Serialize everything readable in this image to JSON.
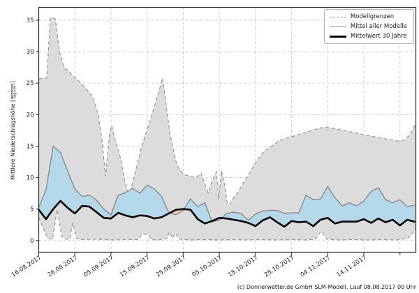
{
  "footer": {
    "copyright": "(c) Donnerwetter.de GmbH SLM-Modell, Lauf 08.08.2017 00 Uhr"
  },
  "chart_data": {
    "type": "area",
    "title": "",
    "xlabel": "",
    "ylabel": {
      "prefix": "Mittlere Niederschlagshöhe [",
      "frac_num": "l",
      "frac_den": "Tag×m²",
      "suffix": "]"
    },
    "grid": true,
    "legend_position": "upper right",
    "legend": [
      {
        "label": "Modellgrenzen",
        "style": "dashed-gray"
      },
      {
        "label": "Mittel aller Modelle",
        "style": "solid-gray"
      },
      {
        "label": "Mittelwert 30 Jahre",
        "style": "solid-black"
      }
    ],
    "ylim": [
      -1.85,
      37.05
    ],
    "xlim_days": [
      0,
      104.4
    ],
    "y_ticks": [
      0,
      5,
      10,
      15,
      20,
      25,
      30,
      35
    ],
    "x_ticks": [
      {
        "day": 0,
        "label": "16.08.2017"
      },
      {
        "day": 10,
        "label": "26.08.2017"
      },
      {
        "day": 20,
        "label": "05.09.2017"
      },
      {
        "day": 30,
        "label": "15.09.2017"
      },
      {
        "day": 40,
        "label": "25.09.2017"
      },
      {
        "day": 50,
        "label": "05.10.2017"
      },
      {
        "day": 60,
        "label": "15.10.2017"
      },
      {
        "day": 70,
        "label": "25.10.2017"
      },
      {
        "day": 80,
        "label": "04.11.2017"
      },
      {
        "day": 90,
        "label": "14.11.2017"
      },
      {
        "day": 100,
        "label": ""
      }
    ],
    "x_grid_days": [
      10,
      20,
      30,
      40,
      50,
      60,
      70,
      80,
      90,
      100
    ],
    "colors": {
      "band_fill": "#dcdcdc",
      "band_edge": "#8f8f8f",
      "fill_above": "#b5d8ea",
      "fill_below": "#f1c5bc",
      "mean_line": "#8a8a8a",
      "mean30_line": "#000000",
      "grid": "#c9c9c9",
      "spine": "#262626",
      "text": "#1a1a1a"
    },
    "series": {
      "upper_bound": {
        "name": "Modellgrenzen (oben)",
        "points": [
          [
            0,
            25.7
          ],
          [
            2.2,
            25.8
          ],
          [
            3.2,
            35.4
          ],
          [
            4.6,
            35.2
          ],
          [
            5.7,
            30.0
          ],
          [
            7.2,
            27.3
          ],
          [
            8.3,
            27.0
          ],
          [
            9,
            26.4
          ],
          [
            11,
            25.4
          ],
          [
            13,
            24.2
          ],
          [
            15,
            22.8
          ],
          [
            16.5,
            20.0
          ],
          [
            17.5,
            16.0
          ],
          [
            18.5,
            10.2
          ],
          [
            19.6,
            17.0
          ],
          [
            20.2,
            18.2
          ],
          [
            21.2,
            15.8
          ],
          [
            22.7,
            13.0
          ],
          [
            23.7,
            9.8
          ],
          [
            25,
            7.0
          ],
          [
            26.6,
            10.6
          ],
          [
            28.5,
            15.0
          ],
          [
            30.5,
            18.5
          ],
          [
            32.4,
            22.0
          ],
          [
            34.3,
            25.8
          ],
          [
            36.3,
            17.0
          ],
          [
            38.2,
            12.0
          ],
          [
            40.1,
            10.5
          ],
          [
            42,
            10.2
          ],
          [
            43.5,
            10.0
          ],
          [
            45,
            10.7
          ],
          [
            46,
            9.0
          ],
          [
            46.9,
            7.6
          ],
          [
            48,
            9.5
          ],
          [
            49.2,
            10.9
          ],
          [
            49.8,
            6.5
          ],
          [
            50.6,
            11.1
          ],
          [
            51.4,
            9.0
          ],
          [
            52.2,
            5.9
          ],
          [
            52.8,
            5.7
          ],
          [
            54,
            6.8
          ],
          [
            55.3,
            7.8
          ],
          [
            56.4,
            8.9
          ],
          [
            57.4,
            9.8
          ],
          [
            58.5,
            10.9
          ],
          [
            59.5,
            11.9
          ],
          [
            60.5,
            12.8
          ],
          [
            61.5,
            13.5
          ],
          [
            62.4,
            14.2
          ],
          [
            64.5,
            15.0
          ],
          [
            66.6,
            15.9
          ],
          [
            70,
            16.5
          ],
          [
            74,
            17.2
          ],
          [
            78,
            17.9
          ],
          [
            79.6,
            18.0
          ],
          [
            82,
            17.8
          ],
          [
            86,
            17.3
          ],
          [
            90,
            16.8
          ],
          [
            93.7,
            16.4
          ],
          [
            96.6,
            16.1
          ],
          [
            99.5,
            15.8
          ],
          [
            101.4,
            16.0
          ],
          [
            103,
            17.0
          ],
          [
            104.4,
            18.6
          ]
        ]
      },
      "lower_bound": {
        "name": "Modellgrenzen (unten)",
        "points": [
          [
            0,
            3.7
          ],
          [
            1.4,
            1.7
          ],
          [
            2.6,
            0.3
          ],
          [
            3.8,
            0.2
          ],
          [
            5.1,
            4.9
          ],
          [
            6.4,
            0.6
          ],
          [
            7.5,
            0.2
          ],
          [
            8.6,
            0.3
          ],
          [
            9.4,
            2.8
          ],
          [
            10.6,
            0.3
          ],
          [
            12,
            0.15
          ],
          [
            16,
            0.2
          ],
          [
            20,
            0.1
          ],
          [
            24,
            0.15
          ],
          [
            27.5,
            0.15
          ],
          [
            28.6,
            1.0
          ],
          [
            30.3,
            1.0
          ],
          [
            31.2,
            0.15
          ],
          [
            33,
            0.1
          ],
          [
            35.5,
            0.3
          ],
          [
            36.2,
            1.4
          ],
          [
            37,
            0.4
          ],
          [
            37.8,
            1.2
          ],
          [
            39,
            0.2
          ],
          [
            42,
            0.1
          ],
          [
            46,
            0.15
          ],
          [
            50,
            0.1
          ],
          [
            54,
            0.15
          ],
          [
            58,
            0.1
          ],
          [
            62,
            0.15
          ],
          [
            66,
            0.1
          ],
          [
            70,
            0.15
          ],
          [
            74,
            0.1
          ],
          [
            76.6,
            0.2
          ],
          [
            78.2,
            1.5
          ],
          [
            79.8,
            0.2
          ],
          [
            83,
            0.1
          ],
          [
            87,
            0.15
          ],
          [
            91,
            0.1
          ],
          [
            95,
            0.15
          ],
          [
            99,
            0.1
          ],
          [
            102,
            0.3
          ],
          [
            103.2,
            0.9
          ],
          [
            104.4,
            2.0
          ]
        ]
      },
      "common_days": [
        0,
        2,
        4,
        6,
        8,
        10,
        12,
        14,
        16,
        18,
        20,
        22,
        24,
        26,
        28,
        30,
        32,
        34,
        36,
        38,
        40,
        42,
        44,
        46,
        48,
        50,
        52,
        54,
        56,
        58,
        60,
        62,
        64,
        66,
        68,
        70,
        72,
        74,
        76,
        78,
        80,
        82,
        84,
        86,
        88,
        90,
        92,
        94,
        96,
        98,
        100,
        102,
        104
      ],
      "model_mean": {
        "name": "Mittel aller Modelle",
        "values": [
          5.3,
          8.0,
          15.0,
          14.0,
          11.0,
          8.2,
          7.0,
          7.2,
          6.4,
          5.0,
          4.1,
          7.2,
          7.6,
          8.3,
          7.5,
          8.8,
          8.2,
          7.0,
          4.4,
          4.1,
          4.8,
          6.6,
          5.4,
          6.0,
          3.0,
          3.2,
          4.3,
          4.5,
          4.3,
          3.2,
          4.2,
          4.7,
          4.8,
          4.8,
          4.3,
          4.4,
          4.4,
          7.2,
          6.5,
          6.6,
          8.6,
          6.8,
          5.5,
          6.0,
          5.5,
          6.3,
          7.8,
          8.4,
          6.5,
          6.0,
          6.5,
          5.4,
          5.6
        ]
      },
      "mean_30y": {
        "name": "Mittelwert 30 Jahre",
        "values": [
          4.9,
          3.4,
          5.0,
          6.3,
          5.2,
          4.3,
          5.5,
          5.4,
          4.5,
          3.6,
          3.5,
          4.4,
          4.0,
          3.7,
          4.0,
          3.9,
          3.5,
          3.7,
          4.3,
          4.9,
          5.0,
          4.9,
          3.4,
          2.7,
          3.1,
          3.6,
          3.5,
          3.3,
          3.1,
          2.8,
          2.3,
          3.2,
          3.7,
          2.9,
          2.2,
          3.1,
          2.9,
          3.0,
          2.3,
          3.3,
          3.6,
          2.7,
          3.0,
          3.0,
          3.0,
          3.4,
          2.8,
          3.5,
          2.9,
          3.3,
          2.4,
          3.3,
          3.0
        ]
      }
    }
  }
}
